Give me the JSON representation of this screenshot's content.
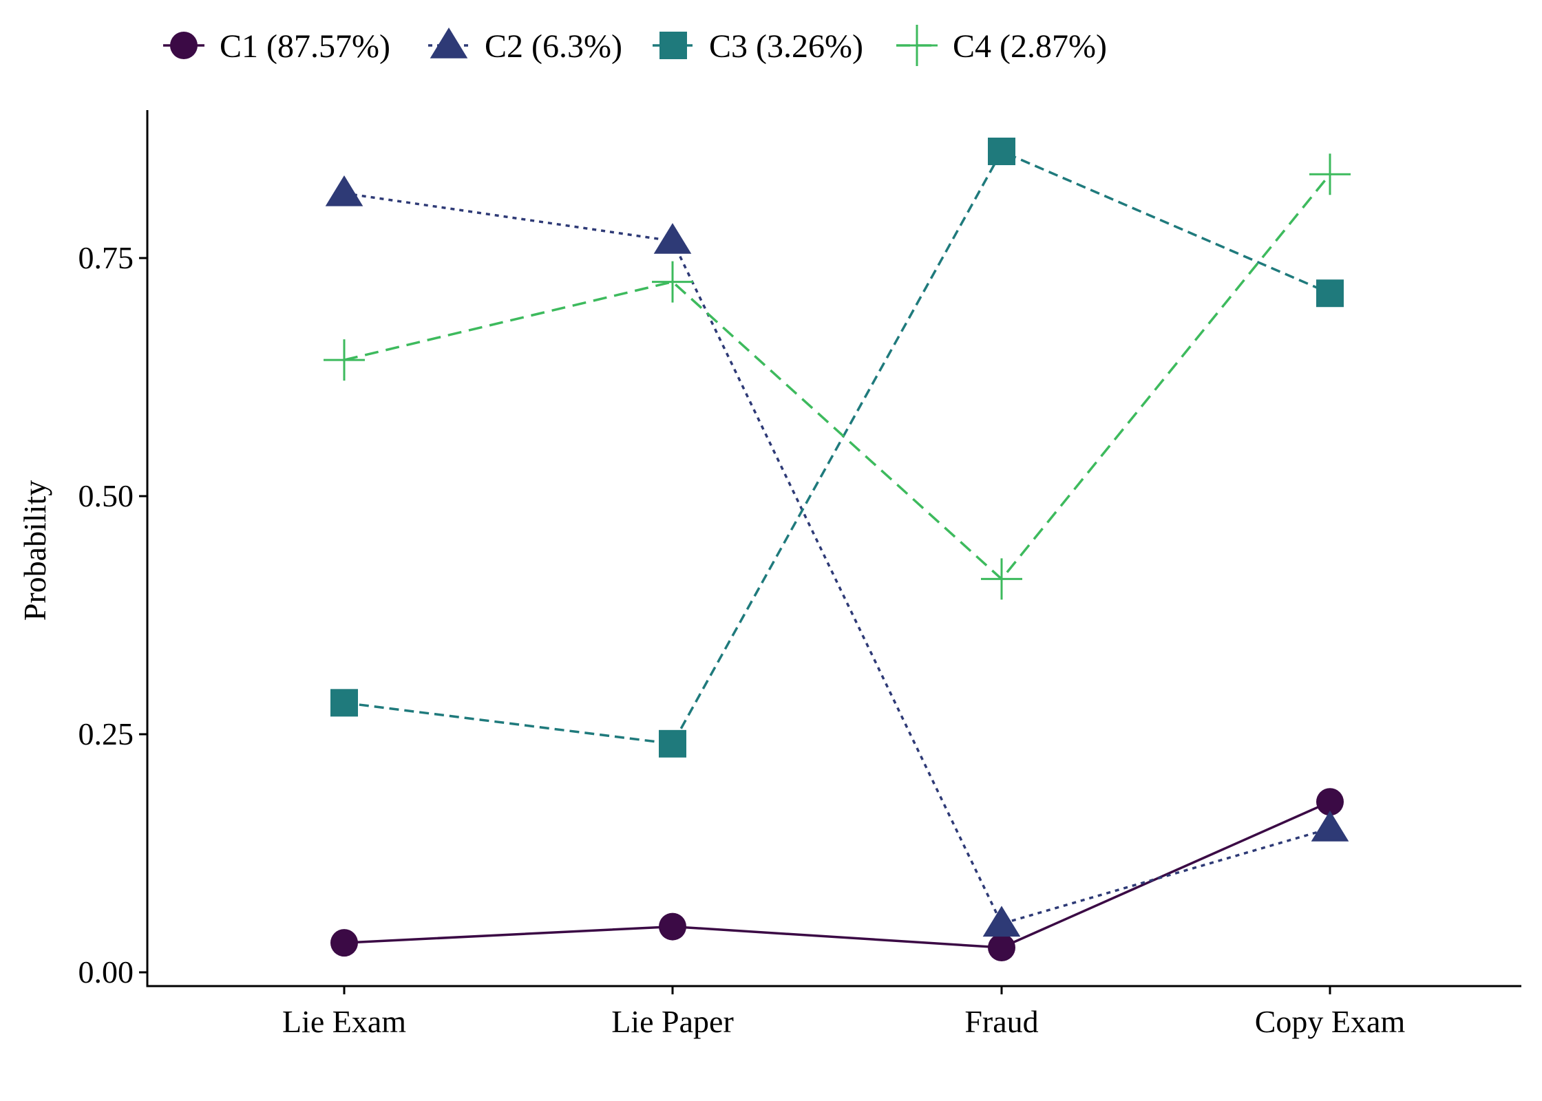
{
  "chart_data": {
    "type": "line",
    "categories": [
      "Lie Exam",
      "Lie Paper",
      "Fraud",
      "Copy Exam"
    ],
    "ylabel": "Probability",
    "xlabel": "",
    "ylim": [
      0,
      0.9
    ],
    "yticks": [
      0.0,
      0.25,
      0.5,
      0.75
    ],
    "ytick_labels": [
      "0.00",
      "0.25",
      "0.50",
      "0.75"
    ],
    "legend_position": "top",
    "grid": false,
    "series": [
      {
        "name": "C1 (87.57%)",
        "marker": "circle",
        "line_style": "solid",
        "color": "#3b0a45",
        "values": [
          0.031,
          0.048,
          0.026,
          0.179
        ]
      },
      {
        "name": "C2 (6.3%)",
        "marker": "triangle",
        "line_style": "dotted",
        "color": "#2e3a76",
        "values": [
          0.818,
          0.768,
          0.051,
          0.151
        ]
      },
      {
        "name": "C3 (3.26%)",
        "marker": "square",
        "line_style": "dashed",
        "color": "#1f7a7c",
        "values": [
          0.283,
          0.24,
          0.862,
          0.713
        ]
      },
      {
        "name": "C4 (2.87%)",
        "marker": "plus",
        "line_style": "longdash",
        "color": "#3dba5d",
        "values": [
          0.643,
          0.725,
          0.413,
          0.838
        ]
      }
    ]
  }
}
